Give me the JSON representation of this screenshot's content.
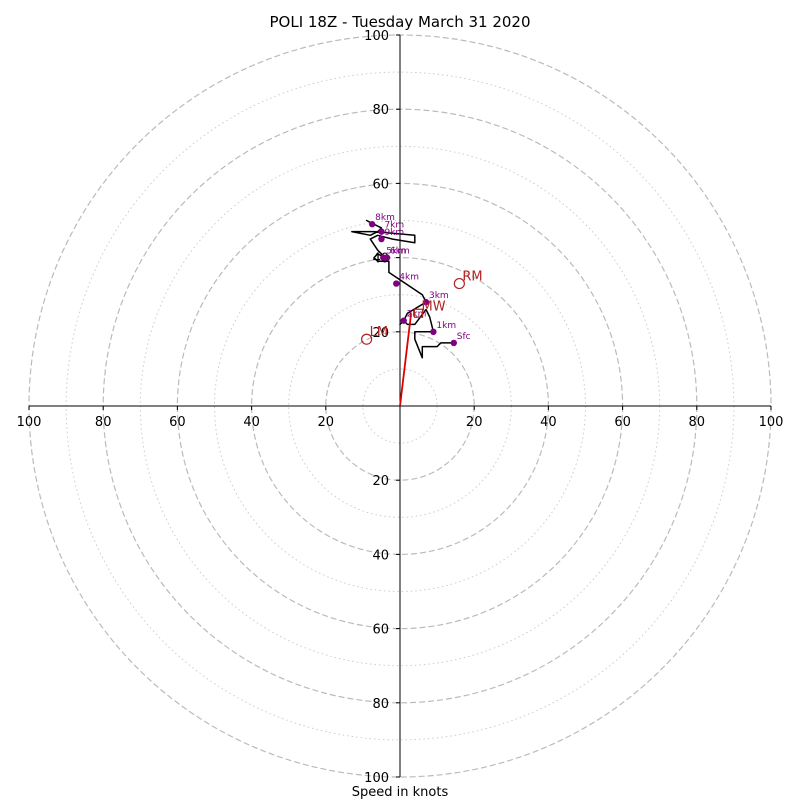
{
  "chart_data": {
    "type": "hodograph",
    "title": "POLI 18Z - Tuesday March 31 2020",
    "xlabel": "Speed in knots",
    "range": [
      -100,
      100
    ],
    "ring_major": [
      20,
      40,
      60,
      80,
      100
    ],
    "ring_minor": [
      10,
      30,
      50,
      70,
      90
    ],
    "tick_labels": {
      "x": [
        {
          "v": -100,
          "t": "100"
        },
        {
          "v": -80,
          "t": "80"
        },
        {
          "v": -60,
          "t": "60"
        },
        {
          "v": -40,
          "t": "40"
        },
        {
          "v": -20,
          "t": "20"
        },
        {
          "v": 20,
          "t": "20"
        },
        {
          "v": 40,
          "t": "40"
        },
        {
          "v": 60,
          "t": "60"
        },
        {
          "v": 80,
          "t": "80"
        },
        {
          "v": 100,
          "t": "100"
        }
      ],
      "y": [
        {
          "v": 100,
          "t": "100"
        },
        {
          "v": 80,
          "t": "80"
        },
        {
          "v": 60,
          "t": "60"
        },
        {
          "v": 40,
          "t": "40"
        },
        {
          "v": 20,
          "t": "20"
        },
        {
          "v": -20,
          "t": "20"
        },
        {
          "v": -40,
          "t": "40"
        },
        {
          "v": -60,
          "t": "60"
        },
        {
          "v": -80,
          "t": "80"
        },
        {
          "v": -100,
          "t": "100"
        }
      ]
    },
    "trace": [
      [
        14.5,
        17
      ],
      [
        11,
        17
      ],
      [
        10,
        16
      ],
      [
        6,
        16
      ],
      [
        6,
        13
      ],
      [
        4,
        18
      ],
      [
        4,
        20
      ],
      [
        9,
        20
      ],
      [
        8,
        24
      ],
      [
        7,
        26
      ],
      [
        4,
        22
      ],
      [
        3,
        22
      ],
      [
        2,
        22
      ],
      [
        1,
        23
      ],
      [
        0,
        22
      ],
      [
        1,
        23
      ],
      [
        2,
        25
      ],
      [
        7,
        28
      ],
      [
        6,
        30
      ],
      [
        -3,
        36
      ],
      [
        -3,
        39
      ],
      [
        -6,
        39
      ],
      [
        -7,
        40
      ],
      [
        -6,
        41
      ],
      [
        -4,
        40
      ],
      [
        -6,
        42
      ],
      [
        -8,
        45
      ],
      [
        -6,
        46
      ],
      [
        -2,
        45
      ],
      [
        4,
        44
      ],
      [
        4,
        46
      ],
      [
        -7,
        47
      ],
      [
        -13,
        47
      ],
      [
        -8,
        46
      ],
      [
        -6,
        47
      ],
      [
        -5,
        48
      ],
      [
        -9,
        50
      ],
      [
        -7,
        49
      ]
    ],
    "heights": [
      {
        "label": "Sfc",
        "x": 14.5,
        "y": 17
      },
      {
        "label": "1km",
        "x": 9,
        "y": 20
      },
      {
        "label": "2km",
        "x": 1,
        "y": 23
      },
      {
        "label": "3km",
        "x": 7,
        "y": 28
      },
      {
        "label": "4km",
        "x": -1,
        "y": 33
      },
      {
        "label": "5km",
        "x": -4.5,
        "y": 40
      },
      {
        "label": "6km",
        "x": -3.5,
        "y": 40
      },
      {
        "label": "7km",
        "x": -5,
        "y": 47
      },
      {
        "label": "8km",
        "x": -7.5,
        "y": 49
      },
      {
        "label": "9km",
        "x": -5,
        "y": 45
      }
    ],
    "storm_motion": [
      {
        "label": "RM",
        "x": 16,
        "y": 33
      },
      {
        "label": "LM",
        "x": -9,
        "y": 18
      },
      {
        "label": "MW",
        "x": 5,
        "y": 25
      }
    ],
    "shear_vector": {
      "from": [
        0,
        0
      ],
      "to": [
        3,
        25
      ]
    },
    "colors": {
      "trace": "#000000",
      "height_marker": "#800080",
      "storm_motion": "#b22222",
      "shear_vector": "#dd0000",
      "ring": "#bbbbbb",
      "axis": "#000000"
    }
  }
}
